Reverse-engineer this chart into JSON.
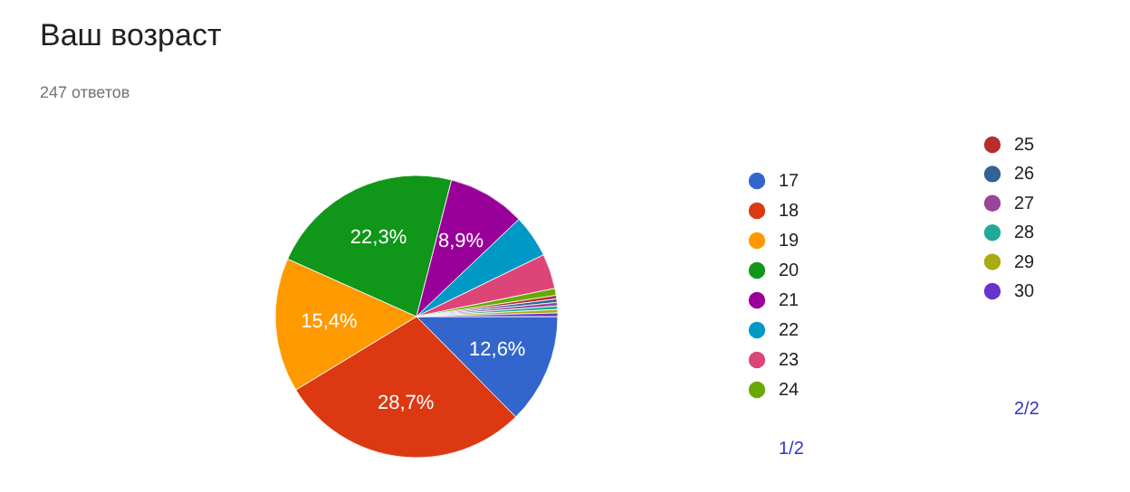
{
  "chart_data": {
    "type": "pie",
    "title": "Ваш возраст",
    "subtitle": "247 ответов",
    "categories": [
      "17",
      "18",
      "19",
      "20",
      "21",
      "22",
      "23",
      "24",
      "25",
      "26",
      "27",
      "28",
      "29",
      "30"
    ],
    "values": [
      12.6,
      28.7,
      15.4,
      22.3,
      8.9,
      4.9,
      4.0,
      0.8,
      0.4,
      0.4,
      0.4,
      0.4,
      0.4,
      0.4
    ],
    "colors": [
      "#3366cc",
      "#dc3912",
      "#ff9900",
      "#109618",
      "#990099",
      "#0099c6",
      "#dd4477",
      "#66aa00",
      "#b82e2e",
      "#316395",
      "#994499",
      "#22aa99",
      "#aaaa11",
      "#6633cc"
    ],
    "value_labels": [
      "12,6%",
      "28,7%",
      "15,4%",
      "22,3%",
      "8,9%",
      null,
      null,
      null,
      null,
      null,
      null,
      null,
      null,
      null
    ],
    "legend": "right",
    "annotations": [
      "1/2",
      "2/2"
    ]
  }
}
